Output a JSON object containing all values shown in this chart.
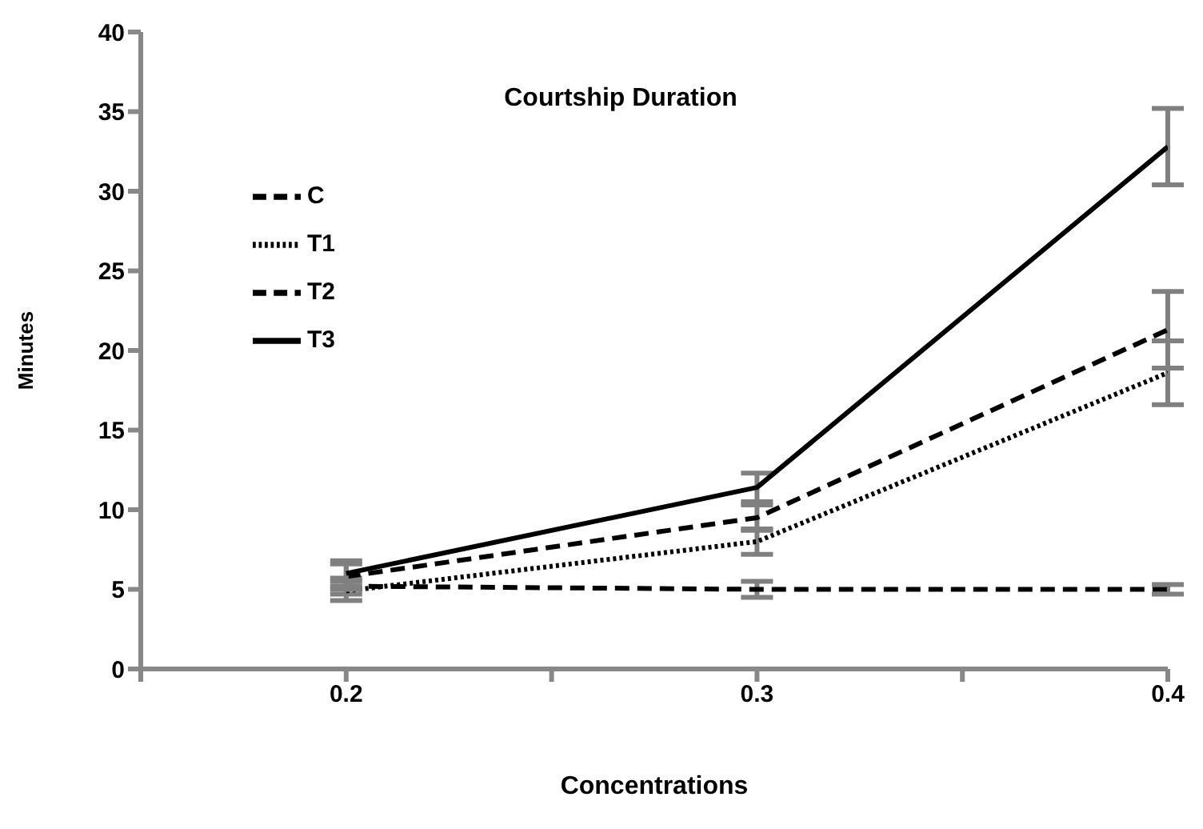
{
  "chart_data": {
    "type": "line",
    "title": "Courtship Duration",
    "xlabel": "Concentrations",
    "ylabel": "Minutes",
    "x": [
      0.2,
      0.3,
      0.4
    ],
    "xlim": [
      0.15,
      0.4
    ],
    "xticks": [
      {
        "value": 0.15,
        "label": null
      },
      0.2,
      {
        "value": 0.25,
        "label": null
      },
      0.3,
      {
        "value": 0.35,
        "label": null
      },
      0.4
    ],
    "ylim": [
      0,
      40
    ],
    "yticks": [
      0,
      5,
      10,
      15,
      20,
      25,
      30,
      35,
      40
    ],
    "legend": "top left",
    "series": [
      {
        "name": "C",
        "color": "#000000",
        "line_style": "dashed",
        "values": [
          5.2,
          5.0,
          5.0
        ],
        "errors": [
          0.5,
          0.5,
          0.3
        ]
      },
      {
        "name": "T1",
        "color": "#000000",
        "line_style": "dotted",
        "values": [
          4.9,
          8.0,
          18.6
        ],
        "errors": [
          0.6,
          0.8,
          2.0
        ]
      },
      {
        "name": "T2",
        "color": "#000000",
        "line_style": "dashed",
        "values": [
          5.8,
          9.5,
          21.3
        ],
        "errors": [
          0.8,
          0.8,
          2.4
        ]
      },
      {
        "name": "T3",
        "color": "#000000",
        "line_style": "solid",
        "values": [
          6.0,
          11.4,
          32.8
        ],
        "errors": [
          0.8,
          0.9,
          2.4
        ]
      }
    ]
  }
}
